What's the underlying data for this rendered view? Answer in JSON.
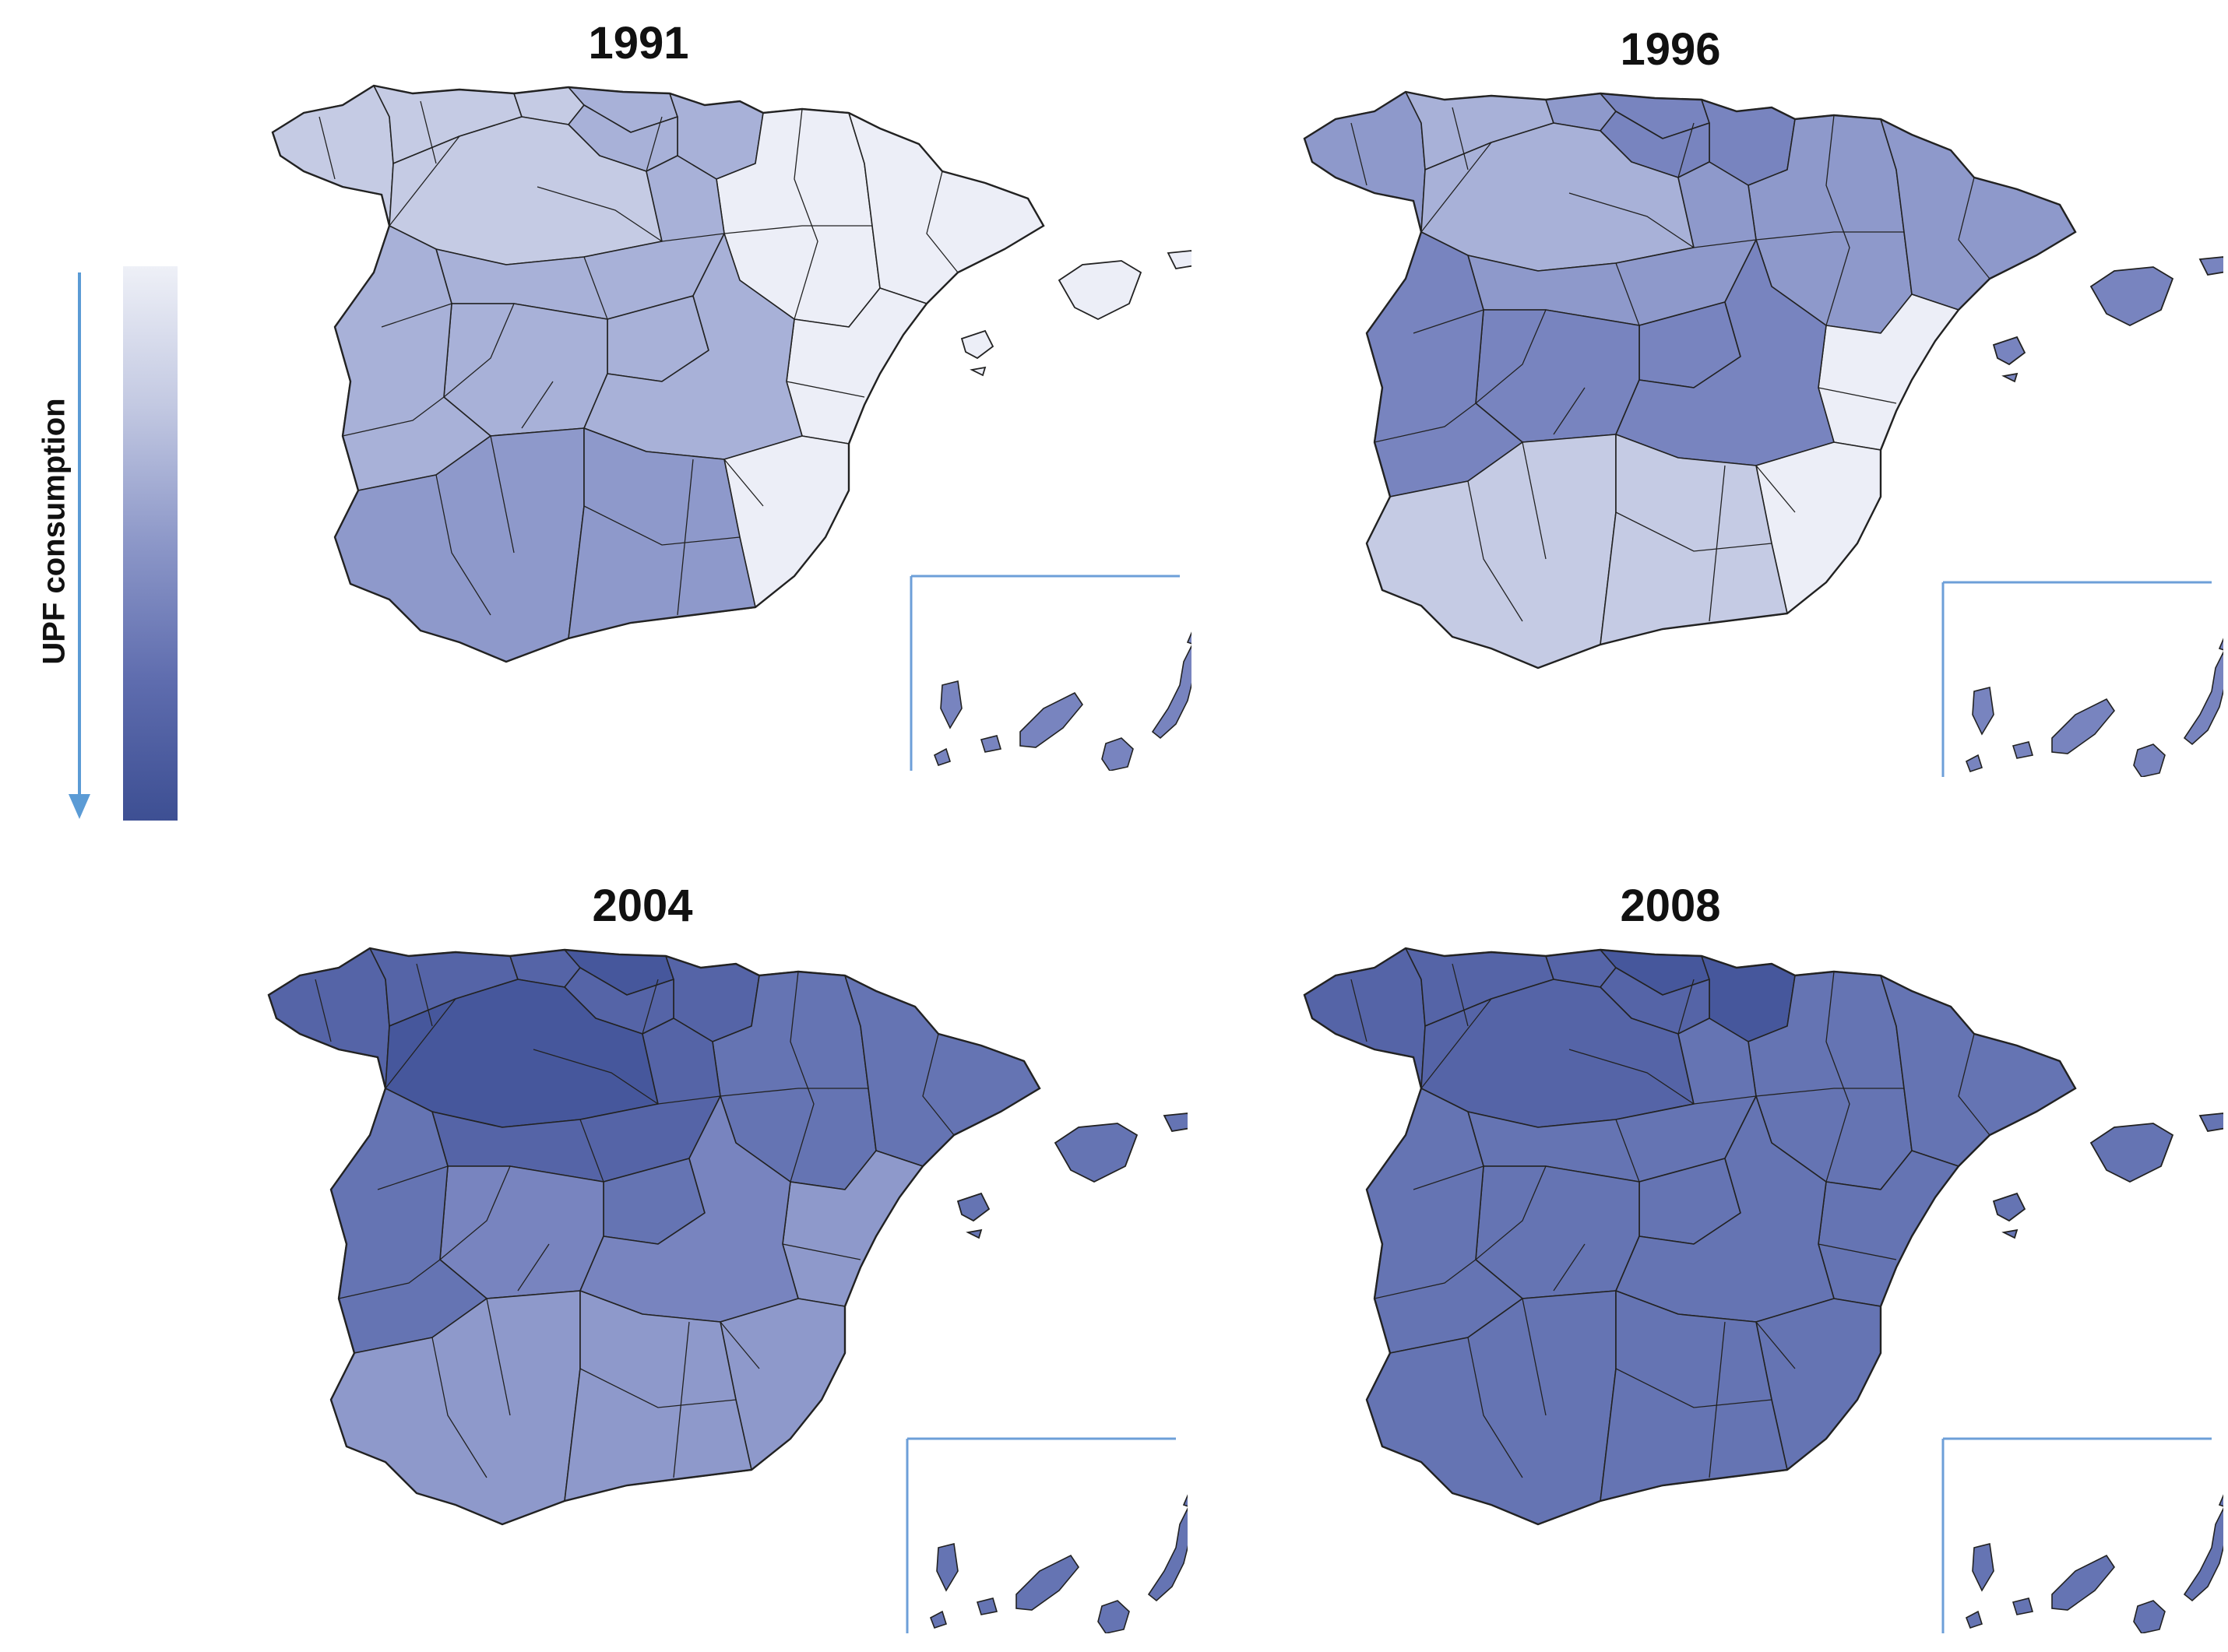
{
  "legend": {
    "label": "UPF consumption",
    "gradient": [
      "#eef0f7",
      "#c3c9e2",
      "#8c97c8",
      "#5e6cae",
      "#3d4f93"
    ]
  },
  "palette": {
    "l1": "#eceef7",
    "l2": "#c5cbe4",
    "l3": "#a8b1d8",
    "l4": "#8e99cb",
    "l5": "#7884bf",
    "l6": "#6574b3",
    "l7": "#5564a7",
    "l8": "#46579c",
    "border": "#222222",
    "inset_frame": "#6d9fd8"
  },
  "maps": [
    {
      "title": "1991",
      "regions": {
        "galicia": "l2",
        "asturias": "l2",
        "cantabria": "l2",
        "basque": "l3",
        "castilla_n": "l2",
        "castilla_s": "l3",
        "navarra": "l3",
        "rioja": "l3",
        "aragon": "l1",
        "catalonia": "l1",
        "valencia": "l1",
        "murcia": "l1",
        "madrid": "l3",
        "clm_w": "l3",
        "clm_e": "l3",
        "extremadura": "l3",
        "andalucia_w": "l4",
        "andalucia_e": "l4",
        "balearic": "l1",
        "canary": "l5"
      }
    },
    {
      "title": "1996",
      "regions": {
        "galicia": "l4",
        "asturias": "l3",
        "cantabria": "l4",
        "basque": "l5",
        "castilla_n": "l3",
        "castilla_s": "l4",
        "navarra": "l5",
        "rioja": "l5",
        "aragon": "l4",
        "catalonia": "l4",
        "valencia": "l1",
        "murcia": "l1",
        "madrid": "l5",
        "clm_w": "l5",
        "clm_e": "l5",
        "extremadura": "l5",
        "andalucia_w": "l2",
        "andalucia_e": "l2",
        "balearic": "l5",
        "canary": "l5"
      }
    },
    {
      "title": "2004",
      "regions": {
        "galicia": "l7",
        "asturias": "l7",
        "cantabria": "l7",
        "basque": "l8",
        "castilla_n": "l8",
        "castilla_s": "l7",
        "navarra": "l7",
        "rioja": "l7",
        "aragon": "l6",
        "catalonia": "l6",
        "valencia": "l4",
        "murcia": "l4",
        "madrid": "l6",
        "clm_w": "l5",
        "clm_e": "l5",
        "extremadura": "l6",
        "andalucia_w": "l4",
        "andalucia_e": "l4",
        "balearic": "l6",
        "canary": "l6"
      }
    },
    {
      "title": "2008",
      "regions": {
        "galicia": "l7",
        "asturias": "l7",
        "cantabria": "l7",
        "basque": "l8",
        "castilla_n": "l7",
        "castilla_s": "l6",
        "navarra": "l8",
        "rioja": "l7",
        "aragon": "l6",
        "catalonia": "l6",
        "valencia": "l6",
        "murcia": "l6",
        "madrid": "l6",
        "clm_w": "l6",
        "clm_e": "l6",
        "extremadura": "l6",
        "andalucia_w": "l6",
        "andalucia_e": "l6",
        "balearic": "l6",
        "canary": "l6"
      }
    }
  ]
}
